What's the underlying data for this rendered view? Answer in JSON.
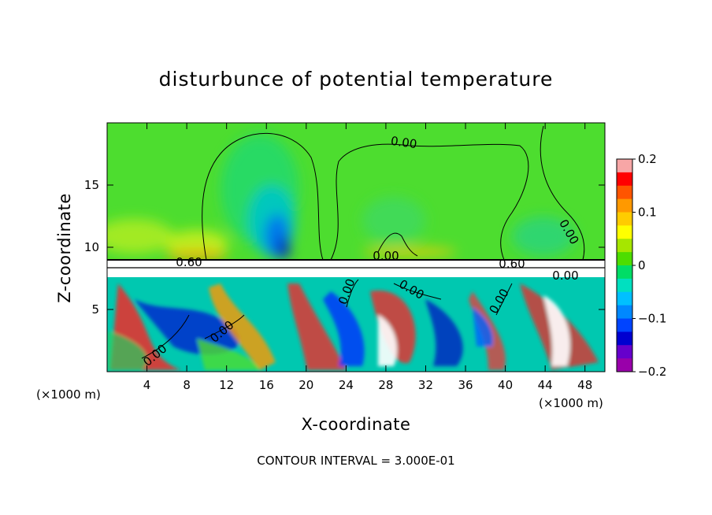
{
  "chart_data": {
    "type": "heatmap",
    "title": "disturbunce of potential temperature",
    "xlabel": "X-coordinate",
    "ylabel": "Z-coordinate",
    "x_unit_left": "(×1000 m)",
    "x_unit_right": "(×1000 m)",
    "xlim": [
      0,
      50
    ],
    "ylim": [
      0,
      20
    ],
    "x_ticks": [
      4,
      8,
      12,
      16,
      20,
      24,
      28,
      32,
      36,
      40,
      44,
      48
    ],
    "y_ticks": [
      5,
      10,
      15
    ],
    "colorbar": {
      "ticks": [
        0.2,
        0.1,
        0,
        -0.1,
        -0.2
      ],
      "tick_labels": [
        "0.2",
        "0.1",
        "0",
        "−0.1",
        "−0.2"
      ],
      "range": [
        -0.2,
        0.2
      ],
      "colors": [
        "#f7a6a6",
        "#ff0000",
        "#ff5500",
        "#ff9900",
        "#ffcc00",
        "#ffff00",
        "#a6e600",
        "#4ddd00",
        "#00dd66",
        "#00e0c0",
        "#00c0ff",
        "#0088ff",
        "#0044ff",
        "#0000d0",
        "#6600cc",
        "#9900aa"
      ]
    },
    "contour_labels": [
      "0.00",
      "0.00",
      "0.60",
      "0.00",
      "0.00",
      "0.60",
      "0.00",
      "0.00",
      "0.00",
      "0.00",
      "0.00"
    ],
    "grid": false,
    "contour_interval_text": "CONTOUR INTERVAL = 3.000E-01"
  },
  "colors": {
    "background_green": "#4ddd2f",
    "cool_anomaly": "#00b6f0",
    "warm_anomaly": "#ff2020"
  }
}
